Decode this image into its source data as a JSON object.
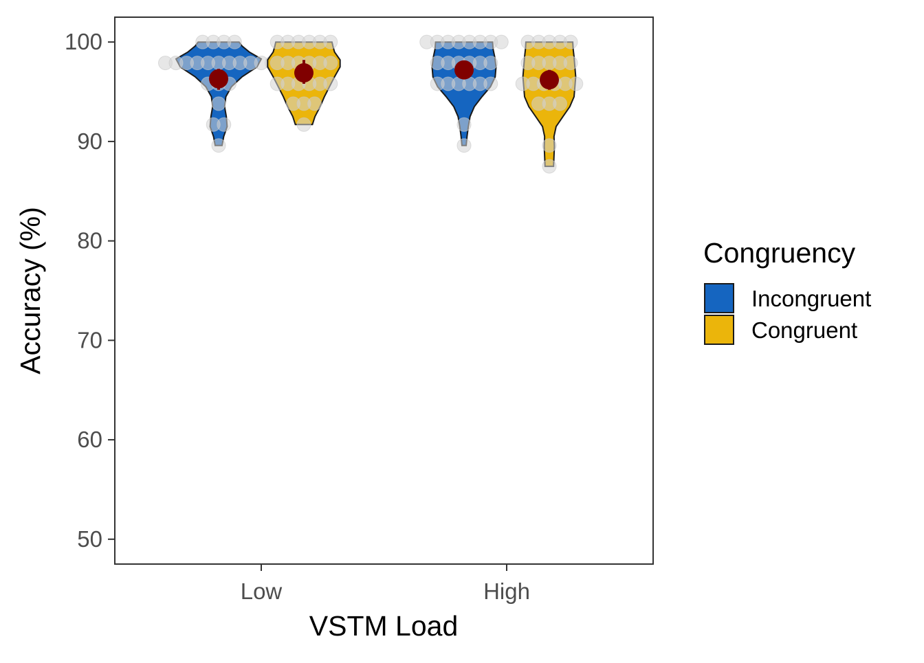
{
  "chart_data": {
    "type": "violin",
    "xlabel": "VSTM Load",
    "ylabel": "Accuracy (%)",
    "ylim": [
      47.5,
      102.5
    ],
    "yticks": [
      50,
      60,
      70,
      80,
      90,
      100
    ],
    "categories": [
      "Low",
      "High"
    ],
    "grid": false,
    "legend": {
      "title": "Congruency",
      "placement": "right",
      "entries": [
        {
          "name": "Incongruent",
          "color": "#1565C0"
        },
        {
          "name": "Congruent",
          "color": "#EBB50B"
        }
      ]
    },
    "colors": {
      "mean_point": "#800000",
      "raw_points": "#D3D3D3",
      "violin_outline": "#1a1a1a",
      "panel_border": "#333333"
    },
    "series": [
      {
        "name": "Incongruent",
        "groups": [
          {
            "category": "Low",
            "mean": 96.3,
            "error": [
              95.2,
              97.3
            ],
            "points": [
              100,
              100,
              100,
              100,
              97.9,
              97.9,
              97.9,
              97.9,
              97.9,
              97.9,
              97.9,
              97.9,
              97.9,
              97.9,
              97.9,
              95.8,
              95.8,
              95.8,
              93.8,
              91.7,
              91.7,
              89.6
            ],
            "density": [
              [
                89.6,
                0.08
              ],
              [
                90.5,
                0.12
              ],
              [
                91.5,
                0.2
              ],
              [
                92.5,
                0.18
              ],
              [
                93.5,
                0.14
              ],
              [
                94.5,
                0.17
              ],
              [
                95.5,
                0.3
              ],
              [
                96.5,
                0.55
              ],
              [
                97.5,
                0.9
              ],
              [
                98.3,
                1.0
              ],
              [
                99.0,
                0.72
              ],
              [
                99.6,
                0.55
              ],
              [
                100,
                0.48
              ]
            ]
          },
          {
            "category": "High",
            "mean": 97.2,
            "error": [
              96.3,
              98.0
            ],
            "points": [
              100,
              100,
              100,
              100,
              100,
              100,
              100,
              100,
              97.9,
              97.9,
              97.9,
              97.9,
              97.9,
              97.9,
              95.8,
              95.8,
              95.8,
              95.8,
              95.8,
              95.8,
              91.7,
              89.6
            ],
            "density": [
              [
                89.6,
                0.05
              ],
              [
                90.5,
                0.07
              ],
              [
                91.5,
                0.1
              ],
              [
                92.5,
                0.14
              ],
              [
                93.5,
                0.24
              ],
              [
                94.5,
                0.42
              ],
              [
                95.5,
                0.62
              ],
              [
                96.5,
                0.73
              ],
              [
                97.5,
                0.75
              ],
              [
                98.5,
                0.72
              ],
              [
                99.3,
                0.68
              ],
              [
                100,
                0.67
              ]
            ]
          }
        ]
      },
      {
        "name": "Congruent",
        "groups": [
          {
            "category": "Low",
            "mean": 96.9,
            "error": [
              95.8,
              98.2
            ],
            "points": [
              100,
              100,
              100,
              100,
              100,
              100,
              97.9,
              97.9,
              97.9,
              97.9,
              97.9,
              97.9,
              95.8,
              95.8,
              95.8,
              95.8,
              95.8,
              95.8,
              93.8,
              93.8,
              93.8,
              91.7
            ],
            "density": [
              [
                91.7,
                0.2
              ],
              [
                92.5,
                0.26
              ],
              [
                93.5,
                0.38
              ],
              [
                94.5,
                0.48
              ],
              [
                95.5,
                0.6
              ],
              [
                96.5,
                0.72
              ],
              [
                97.5,
                0.85
              ],
              [
                98.2,
                0.85
              ],
              [
                99.0,
                0.72
              ],
              [
                99.6,
                0.68
              ],
              [
                100,
                0.66
              ]
            ]
          },
          {
            "category": "High",
            "mean": 96.2,
            "error": [
              95.2,
              97.2
            ],
            "points": [
              100,
              100,
              100,
              100,
              100,
              97.9,
              97.9,
              97.9,
              97.9,
              97.9,
              95.8,
              95.8,
              95.8,
              95.8,
              95.8,
              95.8,
              93.8,
              93.8,
              93.8,
              89.6,
              87.5
            ],
            "density": [
              [
                87.5,
                0.1
              ],
              [
                88.5,
                0.11
              ],
              [
                89.5,
                0.12
              ],
              [
                90.5,
                0.11
              ],
              [
                91.5,
                0.16
              ],
              [
                92.5,
                0.32
              ],
              [
                93.5,
                0.48
              ],
              [
                94.5,
                0.58
              ],
              [
                95.5,
                0.6
              ],
              [
                96.5,
                0.62
              ],
              [
                97.5,
                0.6
              ],
              [
                98.5,
                0.58
              ],
              [
                99.3,
                0.56
              ],
              [
                100,
                0.55
              ]
            ]
          }
        ]
      }
    ]
  }
}
